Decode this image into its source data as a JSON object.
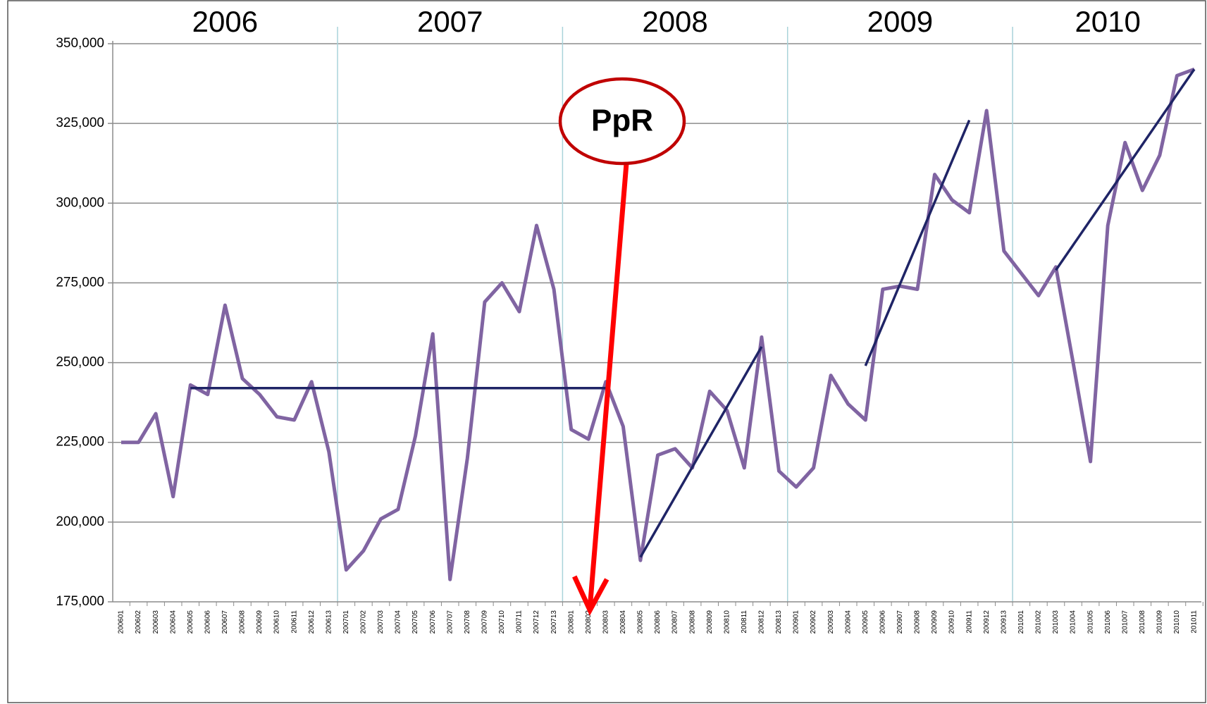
{
  "chart_data": {
    "type": "line",
    "categories": [
      "200601",
      "200602",
      "200603",
      "200604",
      "200605",
      "200606",
      "200607",
      "200608",
      "200609",
      "200610",
      "200611",
      "200612",
      "200613",
      "200701",
      "200702",
      "200703",
      "200704",
      "200705",
      "200706",
      "200707",
      "200708",
      "200709",
      "200710",
      "200711",
      "200712",
      "200713",
      "200801",
      "200802",
      "200803",
      "200804",
      "200805",
      "200806",
      "200807",
      "200808",
      "200809",
      "200810",
      "200811",
      "200812",
      "200813",
      "200901",
      "200902",
      "200903",
      "200904",
      "200905",
      "200906",
      "200907",
      "200908",
      "200909",
      "200910",
      "200911",
      "200912",
      "200913",
      "201001",
      "201002",
      "201003",
      "201004",
      "201005",
      "201006",
      "201007",
      "201008",
      "201009",
      "201010",
      "201011"
    ],
    "series": [
      {
        "color": "#8064a2",
        "values": [
          225000,
          225000,
          234000,
          208000,
          243000,
          240000,
          268000,
          245000,
          240000,
          233000,
          232000,
          244000,
          222000,
          185000,
          191000,
          201000,
          204000,
          227000,
          259000,
          182000,
          220000,
          269000,
          275000,
          266000,
          293000,
          273000,
          229000,
          226000,
          244000,
          230000,
          188000,
          221000,
          223000,
          217000,
          241000,
          235000,
          217000,
          258000,
          216000,
          211000,
          217000,
          246000,
          237000,
          232000,
          273000,
          274000,
          273000,
          309000,
          301000,
          297000,
          329000,
          285000,
          278000,
          271000,
          280000,
          250000,
          219000,
          293000,
          319000,
          304000,
          315000,
          340000,
          342000
        ]
      }
    ],
    "ylim": [
      175000,
      350000
    ],
    "yticks": [
      {
        "value": 175000,
        "label": "175,000"
      },
      {
        "value": 200000,
        "label": "200,000"
      },
      {
        "value": 225000,
        "label": "225,000"
      },
      {
        "value": 250000,
        "label": "250,000"
      },
      {
        "value": 275000,
        "label": "275,000"
      },
      {
        "value": 300000,
        "label": "300,000"
      },
      {
        "value": 325000,
        "label": "325,000"
      },
      {
        "value": 350000,
        "label": "350,000"
      }
    ],
    "grid": true,
    "year_bands": [
      {
        "label": "2006",
        "start": "200601",
        "end": "200613"
      },
      {
        "label": "2007",
        "start": "200701",
        "end": "200713"
      },
      {
        "label": "2008",
        "start": "200801",
        "end": "200813"
      },
      {
        "label": "2009",
        "start": "200901",
        "end": "200913"
      },
      {
        "label": "2010",
        "start": "201001",
        "end": "201011"
      }
    ],
    "trend_lines": [
      {
        "from": "200605",
        "to": "200803",
        "values": [
          242000,
          242000
        ]
      },
      {
        "from": "200805",
        "to": "200812",
        "values": [
          189000,
          255000
        ]
      },
      {
        "from": "200905",
        "to": "200911",
        "values": [
          249000,
          326000
        ]
      },
      {
        "from": "201003",
        "to": "201011",
        "values": [
          279000,
          342000
        ]
      }
    ],
    "annotation": {
      "text": "PpR",
      "category": "200802"
    }
  }
}
